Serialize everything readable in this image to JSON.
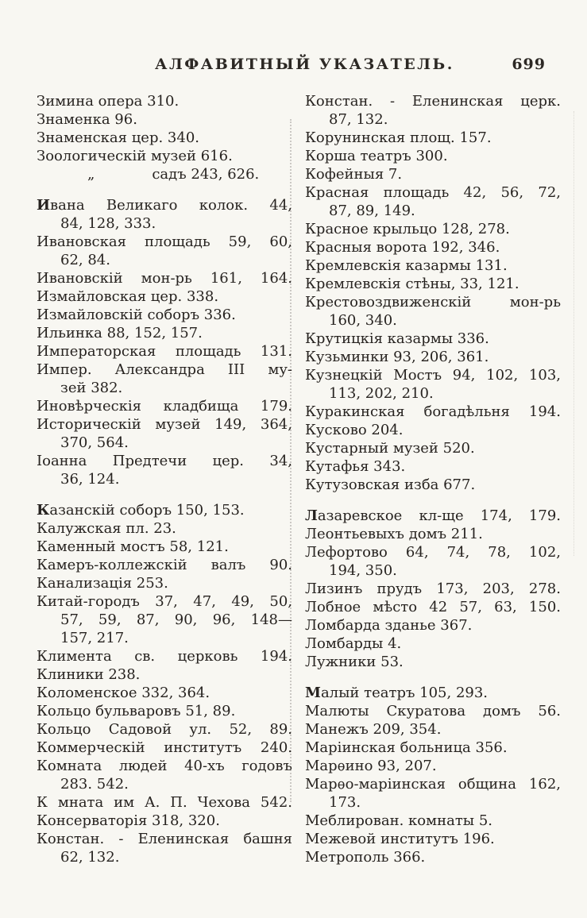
{
  "header": {
    "title": "АЛФАВИТНЫЙ УКАЗАТЕЛЬ.",
    "page_number": "699"
  },
  "colors": {
    "paper": "#f8f7f2",
    "ink": "#272320"
  },
  "columns": [
    {
      "lines": [
        {
          "t": "Зимина опера 310."
        },
        {
          "t": "Знаменка 96."
        },
        {
          "t": "Знаменская цер. 340."
        },
        {
          "t": "Зоологическій музей 616."
        },
        {
          "ditto": [
            "„",
            "садъ 243, 626."
          ]
        },
        {
          "gap": 1
        },
        {
          "t": "Ивана Великаго колок. 44,",
          "b": 1,
          "j": 1
        },
        {
          "t": "84, 128, 333.",
          "ind": 1
        },
        {
          "t": "Ивановская площадь 59, 60,",
          "j": 1
        },
        {
          "t": "62, 84.",
          "ind": 1
        },
        {
          "t": "Ивановскій мон-рь 161, 164.",
          "j": 1
        },
        {
          "t": "Измайловская цер. 338."
        },
        {
          "t": "Измайловскій соборъ 336."
        },
        {
          "t": "Ильинка 88, 152, 157."
        },
        {
          "t": "Императорская площадь 131.",
          "j": 1
        },
        {
          "t": "Импер. Александра III му-",
          "j": 1
        },
        {
          "t": "зей 382.",
          "ind": 1
        },
        {
          "t": "Иновѣрческія кладбища 179.",
          "j": 1
        },
        {
          "t": "Историческій музей 149, 364,",
          "j": 1
        },
        {
          "t": "370, 564.",
          "ind": 1
        },
        {
          "t": "Іоанна Предтечи цер. 34,",
          "j": 1
        },
        {
          "t": "36, 124.",
          "ind": 1
        },
        {
          "gap": 1
        },
        {
          "t": "Казанскій соборъ 150, 153.",
          "b": 1
        },
        {
          "t": "Калужская пл. 23."
        },
        {
          "t": "Каменный мостъ 58, 121."
        },
        {
          "t": "Камеръ-коллежскій валъ 90.",
          "j": 1
        },
        {
          "t": "Канализація 253."
        },
        {
          "t": "Китай-городъ 37, 47, 49, 50,",
          "j": 1
        },
        {
          "t": "57, 59, 87, 90, 96, 148—",
          "ind": 1,
          "j": 1
        },
        {
          "t": "157, 217.",
          "ind": 1
        },
        {
          "t": "Климента св. церковь 194.",
          "j": 1
        },
        {
          "t": "Клиники 238."
        },
        {
          "t": "Коломенское 332, 364."
        },
        {
          "t": "Кольцо бульваровъ 51, 89."
        },
        {
          "t": "Кольцо Садовой ул. 52, 89.",
          "j": 1
        },
        {
          "t": "Коммерческій институтъ 240.",
          "j": 1
        },
        {
          "t": "Комната людей 40-хъ годовъ",
          "j": 1
        },
        {
          "t": "283. 542.",
          "ind": 1
        },
        {
          "t": "К мната им А. П. Чехова 542.",
          "j": 1
        },
        {
          "t": "Консерваторія 318, 320."
        },
        {
          "t": "Констан. - Еленинская башня",
          "j": 1
        },
        {
          "t": "62, 132.",
          "ind": 1
        }
      ]
    },
    {
      "lines": [
        {
          "t": "Констан. - Еленинская церк.",
          "j": 1
        },
        {
          "t": "87, 132.",
          "ind": 1
        },
        {
          "t": "Корунинская площ. 157."
        },
        {
          "t": "Корша театръ 300."
        },
        {
          "t": "Кофейныя 7."
        },
        {
          "t": "Красная площадь 42, 56, 72,",
          "j": 1
        },
        {
          "t": "87, 89, 149.",
          "ind": 1
        },
        {
          "t": "Красное крыльцо 128, 278."
        },
        {
          "t": "Красныя ворота 192, 346."
        },
        {
          "t": "Кремлевскія казармы 131."
        },
        {
          "t": "Кремлевскія стѣны, 33, 121."
        },
        {
          "t": "Крестовоздвиженскій мон-рь",
          "j": 1
        },
        {
          "t": "160, 340.",
          "ind": 1
        },
        {
          "t": "Крутицкія казармы 336."
        },
        {
          "t": "Кузьминки 93, 206, 361."
        },
        {
          "t": "Кузнецкій Мостъ 94, 102, 103,",
          "j": 1
        },
        {
          "t": "113, 202, 210.",
          "ind": 1
        },
        {
          "t": "Куракинская богадѣльня 194.",
          "j": 1
        },
        {
          "t": "Кусково 204."
        },
        {
          "t": "Кустарный музей 520."
        },
        {
          "t": "Кутафья 343."
        },
        {
          "t": "Кутузовская изба 677."
        },
        {
          "gap": 1
        },
        {
          "t": "Лазаревское кл-ще 174, 179.",
          "b": 1,
          "j": 1
        },
        {
          "t": "Леонтьевыхъ домъ 211."
        },
        {
          "t": "Лефортово 64, 74, 78, 102,",
          "j": 1
        },
        {
          "t": "194, 350.",
          "ind": 1
        },
        {
          "t": "Лизинъ прудъ 173, 203, 278.",
          "j": 1
        },
        {
          "t": "Лобное мѣсто 42 57, 63, 150.",
          "j": 1
        },
        {
          "t": "Ломбарда зданье 367."
        },
        {
          "t": "Ломбарды 4."
        },
        {
          "t": "Лужники 53."
        },
        {
          "gap": 1
        },
        {
          "t": "Малый театръ 105, 293.",
          "b": 1
        },
        {
          "t": "Малюты Скуратова домъ 56.",
          "j": 1
        },
        {
          "t": "Манежъ 209, 354."
        },
        {
          "t": "Маріинская больница 356."
        },
        {
          "t": "Марѳино 93, 207."
        },
        {
          "t": "Марѳо-маріинская община 162,",
          "j": 1
        },
        {
          "t": "173.",
          "ind": 1
        },
        {
          "t": "Меблирован. комнаты 5."
        },
        {
          "t": "Межевой институтъ 196."
        },
        {
          "t": "Метрополь 366."
        }
      ]
    }
  ]
}
